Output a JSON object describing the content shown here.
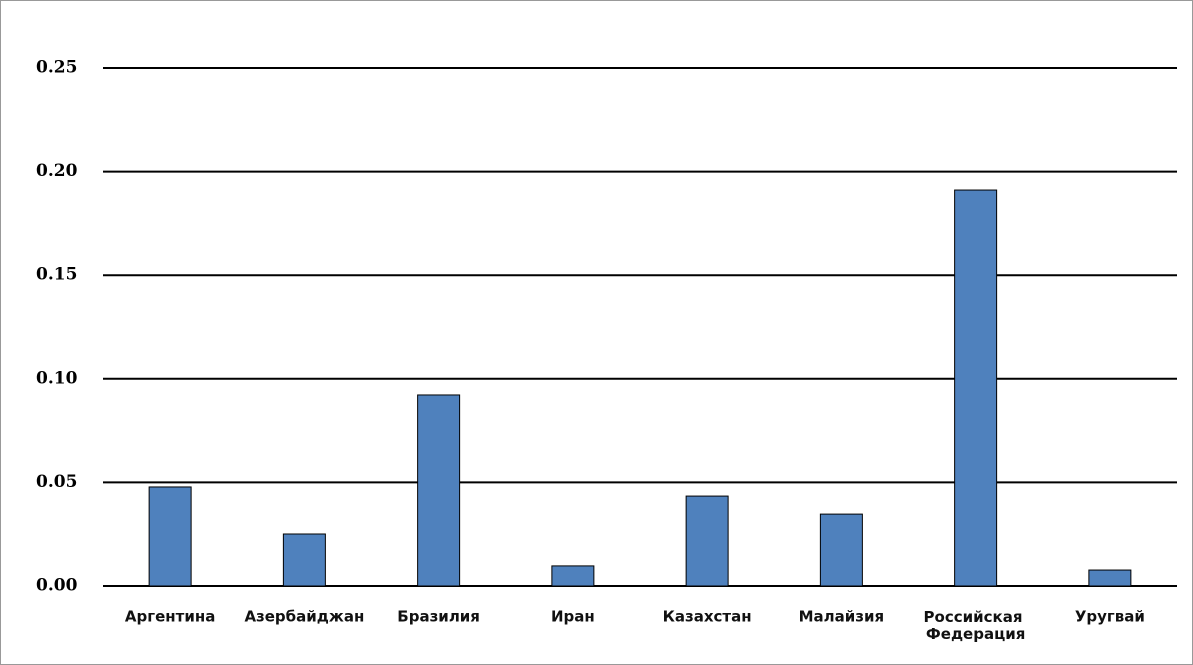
{
  "chart_data": {
    "type": "bar",
    "categories": [
      "Аргентина",
      "Азербайджан",
      "Бразилия",
      "Иран",
      "Казахстан",
      "Малайзия",
      "Российская Федерация",
      "Уругвай"
    ],
    "values": [
      0.0478,
      0.0251,
      0.0922,
      0.0097,
      0.0434,
      0.0347,
      0.1911,
      0.0077
    ],
    "color": "#4f81bd",
    "ylim": [
      0,
      0.25
    ],
    "yticks": [
      {
        "value": 0,
        "label": "0.00"
      },
      0.05,
      {
        "value": 0.1,
        "label": "0.10"
      },
      0.15,
      {
        "value": 0.2,
        "label": "0.20"
      },
      0.25
    ],
    "grid": true
  }
}
